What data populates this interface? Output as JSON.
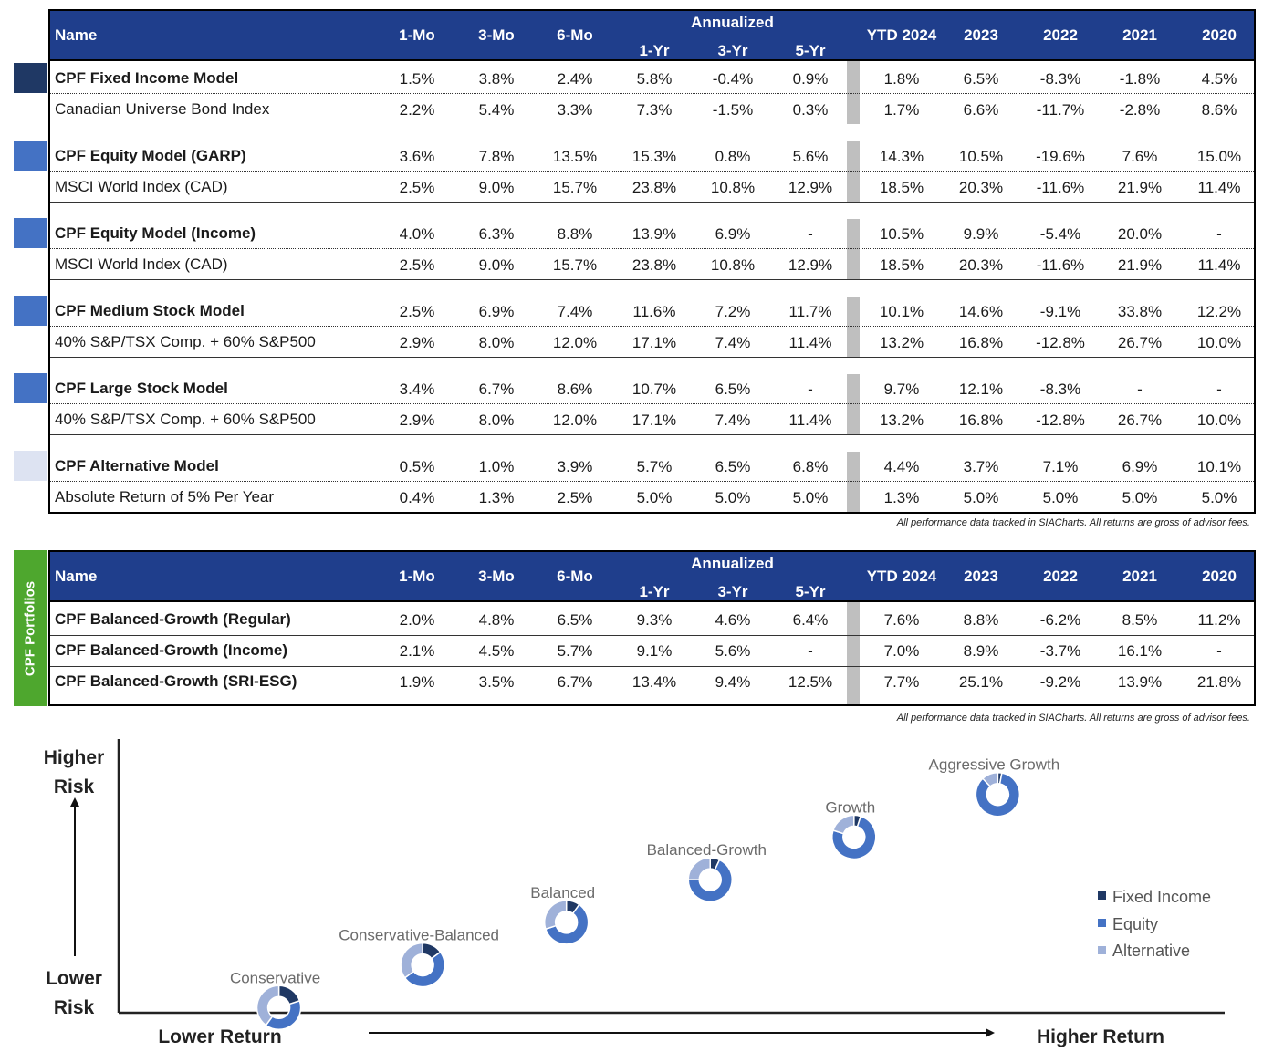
{
  "colors": {
    "header_bg": "#1f3e8c",
    "dark_blue": "#1f3864",
    "medium_blue": "#4472c4",
    "light_blue": "#9fb1d9",
    "pale_blue": "#dde3f2",
    "green": "#4ea72e",
    "separator": "#bfbfbf"
  },
  "headers": {
    "name": "Name",
    "annualized": "Annualized",
    "cols": [
      "1-Mo",
      "3-Mo",
      "6-Mo",
      "1-Yr",
      "3-Yr",
      "5-Yr",
      "YTD 2024",
      "2023",
      "2022",
      "2021",
      "2020"
    ]
  },
  "table1": {
    "rows": [
      {
        "name": "CPF Fixed Income Model",
        "bold": true,
        "key": "dark_blue",
        "values": [
          "1.5%",
          "3.8%",
          "2.4%",
          "5.8%",
          "-0.4%",
          "0.9%",
          "1.8%",
          "6.5%",
          "-8.3%",
          "-1.8%",
          "4.5%"
        ]
      },
      {
        "name": "Canadian Universe Bond Index",
        "bold": false,
        "values": [
          "2.2%",
          "5.4%",
          "3.3%",
          "7.3%",
          "-1.5%",
          "0.3%",
          "1.7%",
          "6.6%",
          "-11.7%",
          "-2.8%",
          "8.6%"
        ]
      },
      {
        "name": "CPF Equity Model (GARP)",
        "bold": true,
        "key": "medium_blue",
        "values": [
          "3.6%",
          "7.8%",
          "13.5%",
          "15.3%",
          "0.8%",
          "5.6%",
          "14.3%",
          "10.5%",
          "-19.6%",
          "7.6%",
          "15.0%"
        ]
      },
      {
        "name": "MSCI World Index (CAD)",
        "bold": false,
        "values": [
          "2.5%",
          "9.0%",
          "15.7%",
          "23.8%",
          "10.8%",
          "12.9%",
          "18.5%",
          "20.3%",
          "-11.6%",
          "21.9%",
          "11.4%"
        ]
      },
      {
        "name": "CPF Equity Model (Income)",
        "bold": true,
        "key": "medium_blue",
        "values": [
          "4.0%",
          "6.3%",
          "8.8%",
          "13.9%",
          "6.9%",
          "-",
          "10.5%",
          "9.9%",
          "-5.4%",
          "20.0%",
          "-"
        ]
      },
      {
        "name": "MSCI World Index (CAD)",
        "bold": false,
        "values": [
          "2.5%",
          "9.0%",
          "15.7%",
          "23.8%",
          "10.8%",
          "12.9%",
          "18.5%",
          "20.3%",
          "-11.6%",
          "21.9%",
          "11.4%"
        ]
      },
      {
        "name": "CPF Medium Stock Model",
        "bold": true,
        "key": "medium_blue",
        "values": [
          "2.5%",
          "6.9%",
          "7.4%",
          "11.6%",
          "7.2%",
          "11.7%",
          "10.1%",
          "14.6%",
          "-9.1%",
          "33.8%",
          "12.2%"
        ]
      },
      {
        "name": "40% S&P/TSX Comp. + 60% S&P500",
        "bold": false,
        "values": [
          "2.9%",
          "8.0%",
          "12.0%",
          "17.1%",
          "7.4%",
          "11.4%",
          "13.2%",
          "16.8%",
          "-12.8%",
          "26.7%",
          "10.0%"
        ]
      },
      {
        "name": "CPF Large Stock Model",
        "bold": true,
        "key": "medium_blue",
        "values": [
          "3.4%",
          "6.7%",
          "8.6%",
          "10.7%",
          "6.5%",
          "-",
          "9.7%",
          "12.1%",
          "-8.3%",
          "-",
          "-"
        ]
      },
      {
        "name": "40% S&P/TSX Comp. + 60% S&P500",
        "bold": false,
        "values": [
          "2.9%",
          "8.0%",
          "12.0%",
          "17.1%",
          "7.4%",
          "11.4%",
          "13.2%",
          "16.8%",
          "-12.8%",
          "26.7%",
          "10.0%"
        ]
      },
      {
        "name": "CPF Alternative Model",
        "bold": true,
        "key": "pale_blue",
        "values": [
          "0.5%",
          "1.0%",
          "3.9%",
          "5.7%",
          "6.5%",
          "6.8%",
          "4.4%",
          "3.7%",
          "7.1%",
          "6.9%",
          "10.1%"
        ]
      },
      {
        "name": "Absolute Return of 5% Per Year",
        "bold": false,
        "values": [
          "0.4%",
          "1.3%",
          "2.5%",
          "5.0%",
          "5.0%",
          "5.0%",
          "1.3%",
          "5.0%",
          "5.0%",
          "5.0%",
          "5.0%"
        ]
      }
    ],
    "footnote": "All performance data tracked in SIACharts. All returns are gross of advisor fees."
  },
  "table2": {
    "side_label": "CPF Portfolios",
    "rows": [
      {
        "name": "CPF Balanced-Growth (Regular)",
        "bold": true,
        "values": [
          "2.0%",
          "4.8%",
          "6.5%",
          "9.3%",
          "4.6%",
          "6.4%",
          "7.6%",
          "8.8%",
          "-6.2%",
          "8.5%",
          "11.2%"
        ]
      },
      {
        "name": "CPF Balanced-Growth (Income)",
        "bold": true,
        "values": [
          "2.1%",
          "4.5%",
          "5.7%",
          "9.1%",
          "5.6%",
          "-",
          "7.0%",
          "8.9%",
          "-3.7%",
          "16.1%",
          "-"
        ]
      },
      {
        "name": "CPF Balanced-Growth (SRI-ESG)",
        "bold": true,
        "values": [
          "1.9%",
          "3.5%",
          "6.7%",
          "13.4%",
          "9.4%",
          "12.5%",
          "7.7%",
          "25.1%",
          "-9.2%",
          "13.9%",
          "21.8%"
        ]
      }
    ],
    "footnote": "All performance data tracked in SIACharts. All returns are gross of advisor fees."
  },
  "chart_data": {
    "type": "scatter",
    "title": "",
    "y_axis_top": [
      "Higher",
      "Risk"
    ],
    "y_axis_bottom": [
      "Lower",
      "Risk"
    ],
    "x_axis_left": "Lower Return",
    "x_axis_right": "Higher Return",
    "x_range": [
      0,
      7
    ],
    "y_range": [
      0,
      7
    ],
    "legend": [
      "Fixed Income",
      "Equity",
      "Alternative"
    ],
    "legend_placement": "right",
    "points": [
      {
        "label": "Conservative",
        "x": 1,
        "y": 1,
        "alloc": {
          "fixed": 0.2,
          "equity": 0.4,
          "alternative": 0.4
        }
      },
      {
        "label": "Conservative-Balanced",
        "x": 2,
        "y": 2,
        "alloc": {
          "fixed": 0.15,
          "equity": 0.5,
          "alternative": 0.35
        }
      },
      {
        "label": "Balanced",
        "x": 3,
        "y": 3,
        "alloc": {
          "fixed": 0.1,
          "equity": 0.6,
          "alternative": 0.3
        }
      },
      {
        "label": "Balanced-Growth",
        "x": 4,
        "y": 4,
        "alloc": {
          "fixed": 0.07,
          "equity": 0.68,
          "alternative": 0.25
        }
      },
      {
        "label": "Growth",
        "x": 5,
        "y": 5,
        "alloc": {
          "fixed": 0.05,
          "equity": 0.75,
          "alternative": 0.2
        }
      },
      {
        "label": "Aggressive Growth",
        "x": 6,
        "y": 6,
        "alloc": {
          "fixed": 0.03,
          "equity": 0.85,
          "alternative": 0.12
        }
      }
    ]
  }
}
